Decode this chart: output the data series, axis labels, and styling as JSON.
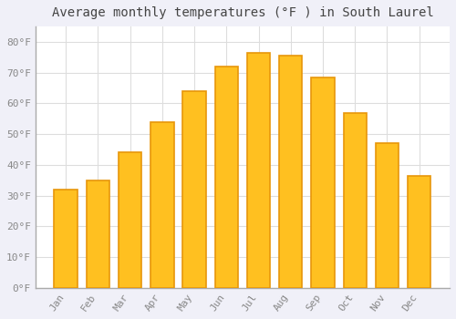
{
  "title": "Average monthly temperatures (°F ) in South Laurel",
  "months": [
    "Jan",
    "Feb",
    "Mar",
    "Apr",
    "May",
    "Jun",
    "Jul",
    "Aug",
    "Sep",
    "Oct",
    "Nov",
    "Dec"
  ],
  "values": [
    32,
    35,
    44,
    54,
    64,
    72,
    76.5,
    75.5,
    68.5,
    57,
    47,
    36.5
  ],
  "bar_color_face": "#FFC020",
  "bar_color_edge": "#E8960A",
  "background_color": "#F0F0F8",
  "plot_bg_color": "#FFFFFF",
  "grid_color": "#DDDDDD",
  "tick_label_color": "#888888",
  "title_color": "#444444",
  "ylim": [
    0,
    85
  ],
  "yticks": [
    0,
    10,
    20,
    30,
    40,
    50,
    60,
    70,
    80
  ],
  "ytick_labels": [
    "0°F",
    "10°F",
    "20°F",
    "30°F",
    "40°F",
    "50°F",
    "60°F",
    "70°F",
    "80°F"
  ],
  "figsize": [
    5.0,
    3.5
  ],
  "dpi": 100
}
